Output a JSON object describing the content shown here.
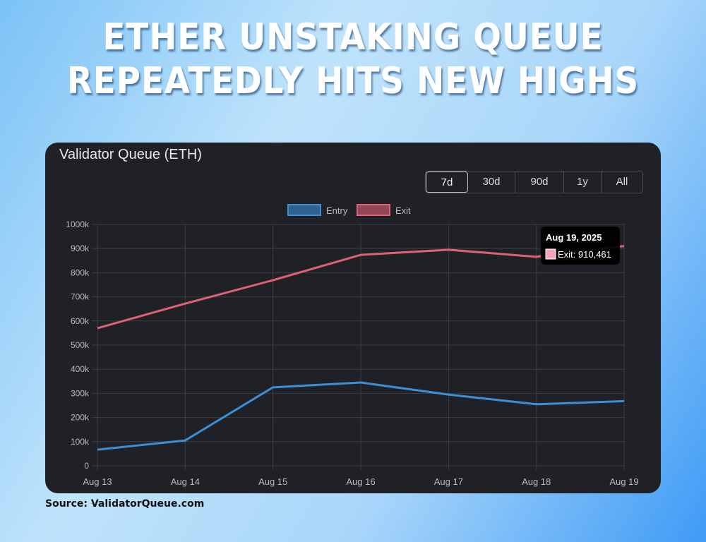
{
  "headline": {
    "line1": "ETHER UNSTAKING QUEUE",
    "line2": "REPEATEDLY HITS NEW HIGHS"
  },
  "card": {
    "title": "Validator Queue (ETH)",
    "ranges": [
      {
        "label": "7d",
        "active": true
      },
      {
        "label": "30d",
        "active": false
      },
      {
        "label": "90d",
        "active": false
      },
      {
        "label": "1y",
        "active": false
      },
      {
        "label": "All",
        "active": false
      }
    ],
    "tooltip": {
      "title": "Aug 19, 2025",
      "label": "Exit: 910,461",
      "swatch_color": "#f4a3b8"
    }
  },
  "source": "Source: ValidatorQueue.com",
  "chart_data": {
    "type": "line",
    "title": "Validator Queue (ETH)",
    "xlabel": "",
    "ylabel": "",
    "categories": [
      "Aug 13",
      "Aug 14",
      "Aug 15",
      "Aug 16",
      "Aug 17",
      "Aug 18",
      "Aug 19"
    ],
    "y_ticks": [
      "0",
      "100k",
      "200k",
      "300k",
      "400k",
      "500k",
      "600k",
      "700k",
      "800k",
      "900k",
      "1000k"
    ],
    "ylim": [
      0,
      1000000
    ],
    "grid": true,
    "legend_position": "top",
    "series": [
      {
        "name": "Entry",
        "color": "#3a8fd6",
        "values": [
          67000,
          105000,
          325000,
          345000,
          295000,
          255000,
          268000
        ]
      },
      {
        "name": "Exit",
        "color": "#e0607a",
        "values": [
          570000,
          672000,
          769000,
          874000,
          895000,
          866000,
          910461
        ]
      }
    ]
  }
}
